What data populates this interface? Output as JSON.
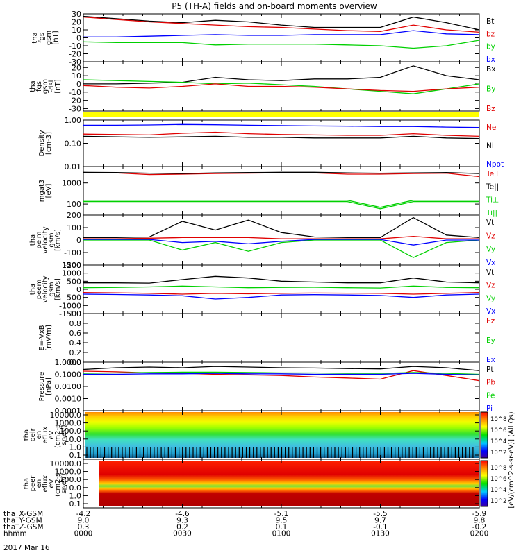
{
  "title": "P5 (TH-A) fields and on-board moments overview",
  "footer": {
    "x_ticks": [
      "0000",
      "0030",
      "0100",
      "0130",
      "0200"
    ],
    "rows": [
      {
        "label": "tha_X-GSM",
        "values": [
          "-4.2",
          "-4.6",
          "-5.1",
          "-5.5",
          "-5.9"
        ]
      },
      {
        "label": "tha_Y-GSM",
        "values": [
          "9.0",
          "9.3",
          "9.5",
          "9.7",
          "9.8"
        ]
      },
      {
        "label": "tha_Z-GSM",
        "values": [
          "0.3",
          "0.2",
          "0.1",
          "-0.1",
          "-0.2"
        ]
      },
      {
        "label": "hhmm",
        "values": [
          "0000",
          "0030",
          "0100",
          "0130",
          "0200"
        ]
      }
    ],
    "date": "2017 Mar 16"
  },
  "colorbar": {
    "label": "[eV/(cm^2-s-sr-eV)] (All Qs)",
    "bar1_ticks": [
      "10^8",
      "10^6",
      "10^4",
      "10^2"
    ],
    "bar2_ticks": [
      "10^8",
      "10^6",
      "10^4",
      "10^2"
    ]
  },
  "colors": {
    "black": "#000000",
    "red": "#e00000",
    "green": "#00d000",
    "blue": "#0000ff",
    "yellow": "#ffff00"
  },
  "chart_data": [
    {
      "type": "line",
      "id": "fgs_gsm",
      "ylabel": [
        "tha",
        "fgs",
        "gsm",
        "[nT]"
      ],
      "y_ticks": [
        "30",
        "20",
        "10",
        "0",
        "-10",
        "-20",
        "-30"
      ],
      "ylim": [
        -30,
        30
      ],
      "x": [
        0,
        10,
        20,
        30,
        40,
        50,
        60,
        70,
        80,
        90,
        100,
        110,
        120
      ],
      "series": [
        {
          "name": "Bt",
          "color": "#000000",
          "values": [
            27,
            24,
            21,
            19,
            22,
            20,
            16,
            13,
            13,
            13,
            26,
            19,
            10
          ]
        },
        {
          "name": "bz",
          "color": "#e00000",
          "values": [
            26,
            23,
            20,
            18,
            16,
            14,
            13,
            11,
            9,
            8,
            16,
            10,
            7
          ]
        },
        {
          "name": "by",
          "color": "#00d000",
          "values": [
            -5,
            -6,
            -6,
            -6,
            -9,
            -8,
            -8,
            -8,
            -9,
            -10,
            -13,
            -10,
            -3
          ]
        },
        {
          "name": "bx",
          "color": "#0000ff",
          "values": [
            1,
            1,
            2,
            3,
            4,
            3,
            3,
            4,
            4,
            4,
            9,
            5,
            4
          ]
        }
      ]
    },
    {
      "type": "line",
      "id": "fgs_gsm_dsl",
      "ylabel": [
        "tha",
        "fgs",
        "gsm",
        "-dsl",
        "[nT]"
      ],
      "y_ticks": [
        "20",
        "10",
        "0",
        "-10",
        "-20",
        "-30"
      ],
      "ylim": [
        -33,
        27
      ],
      "x": [
        0,
        10,
        20,
        30,
        40,
        50,
        60,
        70,
        80,
        90,
        100,
        110,
        120
      ],
      "series": [
        {
          "name": "Bx",
          "color": "#000000",
          "values": [
            0,
            0,
            1,
            2,
            8,
            5,
            4,
            6,
            6,
            8,
            22,
            10,
            5
          ]
        },
        {
          "name": "By",
          "color": "#00d000",
          "values": [
            5,
            4,
            3,
            2,
            0,
            1,
            -1,
            -3,
            -6,
            -9,
            -12,
            -6,
            0
          ]
        },
        {
          "name": "Bz",
          "color": "#e00000",
          "values": [
            -2,
            -4,
            -5,
            -3,
            0,
            -3,
            -3,
            -4,
            -6,
            -8,
            -9,
            -6,
            -4
          ]
        }
      ]
    },
    {
      "type": "line",
      "id": "density",
      "ylabel": [
        "Density",
        "[cm-3]"
      ],
      "y_ticks": [
        "1.00",
        "0.10",
        "0.01"
      ],
      "ylim": [
        0.01,
        1.0
      ],
      "log": true,
      "x": [
        0,
        10,
        20,
        30,
        40,
        50,
        60,
        70,
        80,
        90,
        100,
        110,
        120
      ],
      "series": [
        {
          "name": "Ne",
          "color": "#e00000",
          "values": [
            0.25,
            0.24,
            0.23,
            0.27,
            0.3,
            0.26,
            0.24,
            0.23,
            0.22,
            0.22,
            0.26,
            0.22,
            0.2
          ]
        },
        {
          "name": "Ni",
          "color": "#000000",
          "values": [
            0.2,
            0.19,
            0.18,
            0.19,
            0.2,
            0.18,
            0.18,
            0.17,
            0.17,
            0.17,
            0.2,
            0.17,
            0.16
          ]
        },
        {
          "name": "Npot",
          "color": "#0000ff",
          "values": [
            0.6,
            0.6,
            0.62,
            0.65,
            0.63,
            0.6,
            0.58,
            0.56,
            0.55,
            0.53,
            0.53,
            0.5,
            0.48
          ]
        }
      ]
    },
    {
      "type": "line",
      "id": "mom_temp",
      "ylabel": [
        "mgat3",
        "[eV]"
      ],
      "y_ticks": [
        "1000",
        "100"
      ],
      "ylim": [
        30,
        6000
      ],
      "log": true,
      "x": [
        0,
        10,
        20,
        30,
        40,
        50,
        60,
        70,
        80,
        90,
        100,
        110,
        120
      ],
      "series": [
        {
          "name": "Te⊥",
          "color": "#e00000",
          "values": [
            3000,
            3000,
            2500,
            2600,
            2800,
            2900,
            3000,
            3000,
            2600,
            2600,
            2800,
            2900,
            2000
          ]
        },
        {
          "name": "Te||",
          "color": "#000000",
          "values": [
            3200,
            3100,
            2900,
            2800,
            3000,
            3100,
            3200,
            3200,
            3000,
            2900,
            3000,
            3100,
            2800
          ]
        },
        {
          "name": "Ti⊥",
          "color": "#00d000",
          "values": [
            150,
            150,
            150,
            150,
            150,
            150,
            150,
            150,
            150,
            70,
            150,
            150,
            150
          ]
        },
        {
          "name": "Ti||",
          "color": "#00d000",
          "values": [
            130,
            130,
            130,
            130,
            130,
            130,
            130,
            130,
            130,
            60,
            130,
            130,
            130
          ]
        }
      ]
    },
    {
      "type": "line",
      "id": "peim_velocity",
      "ylabel": [
        "tha",
        "peim",
        "velocity",
        "gsm",
        "[km/s]"
      ],
      "y_ticks": [
        "200",
        "100",
        "0",
        "-100",
        "-200"
      ],
      "ylim": [
        -200,
        200
      ],
      "x": [
        0,
        10,
        20,
        30,
        40,
        50,
        60,
        70,
        80,
        90,
        100,
        110,
        120
      ],
      "series": [
        {
          "name": "Vt",
          "color": "#000000",
          "values": [
            20,
            20,
            25,
            150,
            80,
            160,
            60,
            25,
            20,
            20,
            180,
            40,
            20
          ]
        },
        {
          "name": "Vz",
          "color": "#e00000",
          "values": [
            10,
            10,
            15,
            20,
            20,
            20,
            10,
            10,
            10,
            10,
            30,
            10,
            10
          ]
        },
        {
          "name": "Vy",
          "color": "#00d000",
          "values": [
            0,
            0,
            0,
            -80,
            -20,
            -90,
            -20,
            0,
            0,
            0,
            -140,
            -20,
            0
          ]
        },
        {
          "name": "Vx",
          "color": "#0000ff",
          "values": [
            5,
            5,
            5,
            -20,
            -10,
            -30,
            -10,
            5,
            5,
            5,
            -40,
            0,
            0
          ]
        }
      ]
    },
    {
      "type": "line",
      "id": "peem_velocity",
      "ylabel": [
        "tha",
        "peem",
        "velocity",
        "gsm",
        "[km/s]"
      ],
      "y_ticks": [
        "1500",
        "1000",
        "500",
        "0",
        "-500",
        "-1000",
        "-1500"
      ],
      "ylim": [
        -1500,
        1500
      ],
      "x": [
        0,
        10,
        20,
        30,
        40,
        50,
        60,
        70,
        80,
        90,
        100,
        110,
        120
      ],
      "series": [
        {
          "name": "Vt",
          "color": "#000000",
          "values": [
            400,
            400,
            380,
            600,
            800,
            700,
            500,
            450,
            400,
            400,
            700,
            450,
            400
          ]
        },
        {
          "name": "Vz",
          "color": "#e00000",
          "values": [
            -200,
            -220,
            -250,
            -300,
            -250,
            -280,
            -250,
            -230,
            -240,
            -250,
            -300,
            -250,
            -200
          ]
        },
        {
          "name": "Vy",
          "color": "#00d000",
          "values": [
            100,
            120,
            150,
            200,
            150,
            100,
            120,
            130,
            100,
            80,
            200,
            120,
            100
          ]
        },
        {
          "name": "Vx",
          "color": "#0000ff",
          "values": [
            -300,
            -320,
            -350,
            -400,
            -600,
            -500,
            -350,
            -330,
            -350,
            -380,
            -500,
            -350,
            -300
          ]
        }
      ]
    },
    {
      "type": "line",
      "id": "e_field",
      "ylabel": [
        "E=-VxB",
        "[mV/m]"
      ],
      "y_ticks": [
        "1.0",
        "0.8",
        "0.6",
        "0.4",
        "0.2",
        "0.0"
      ],
      "ylim": [
        0,
        1
      ],
      "x": [],
      "series": [
        {
          "name": "Ez",
          "color": "#e00000",
          "values": []
        },
        {
          "name": "Ey",
          "color": "#00d000",
          "values": []
        },
        {
          "name": "Ex",
          "color": "#0000ff",
          "values": []
        }
      ]
    },
    {
      "type": "line",
      "id": "pressure",
      "ylabel": [
        "Pressure",
        "[nPa]"
      ],
      "y_ticks": [
        "1.0000",
        "0.1000",
        "0.0100",
        "0.0010",
        "0.0001"
      ],
      "ylim": [
        0.0001,
        1.0
      ],
      "log": true,
      "x": [
        0,
        10,
        20,
        30,
        40,
        50,
        60,
        70,
        80,
        90,
        100,
        110,
        120
      ],
      "series": [
        {
          "name": "Pt",
          "color": "#000000",
          "values": [
            0.25,
            0.35,
            0.4,
            0.35,
            0.45,
            0.4,
            0.35,
            0.33,
            0.3,
            0.28,
            0.45,
            0.35,
            0.2
          ]
        },
        {
          "name": "Pb",
          "color": "#e00000",
          "values": [
            0.18,
            0.16,
            0.13,
            0.12,
            0.1,
            0.09,
            0.08,
            0.06,
            0.05,
            0.04,
            0.2,
            0.08,
            0.03
          ]
        },
        {
          "name": "Pe",
          "color": "#00d000",
          "values": [
            0.12,
            0.13,
            0.14,
            0.15,
            0.15,
            0.14,
            0.13,
            0.13,
            0.12,
            0.12,
            0.14,
            0.12,
            0.1
          ]
        },
        {
          "name": "Pi",
          "color": "#0000ff",
          "values": [
            0.1,
            0.1,
            0.11,
            0.11,
            0.12,
            0.11,
            0.11,
            0.1,
            0.1,
            0.1,
            0.12,
            0.1,
            0.09
          ]
        }
      ]
    },
    {
      "type": "heatmap",
      "id": "peir_spectrogram",
      "ylabel": [
        "tha",
        "peir",
        "en",
        "eflux",
        "eV",
        "(cm2-s-",
        "sr-eV)"
      ],
      "y_ticks": [
        "10000.0",
        "1000.0",
        "100.0",
        "10.0",
        "1.0",
        "0.1"
      ]
    },
    {
      "type": "heatmap",
      "id": "peer_spectrogram",
      "ylabel": [
        "tha",
        "peer",
        "en",
        "eflux",
        "eV",
        "(cm2-s-",
        "sr-eV)"
      ],
      "y_ticks": [
        "10000.0",
        "1000.0",
        "100.0",
        "10.0",
        "1.0",
        "0.1"
      ]
    }
  ]
}
